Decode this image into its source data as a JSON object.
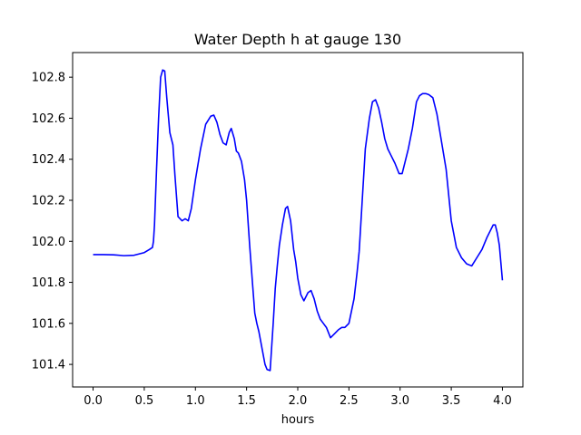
{
  "chart_data": {
    "type": "line",
    "title": "Water Depth h at gauge 130",
    "xlabel": "hours",
    "ylabel": "",
    "xlim": [
      -0.2,
      4.2
    ],
    "ylim": [
      101.29,
      102.92
    ],
    "xticks": [
      0.0,
      0.5,
      1.0,
      1.5,
      2.0,
      2.5,
      3.0,
      3.5,
      4.0
    ],
    "xtick_labels": [
      "0.0",
      "0.5",
      "1.0",
      "1.5",
      "2.0",
      "2.5",
      "3.0",
      "3.5",
      "4.0"
    ],
    "yticks": [
      101.4,
      101.6,
      101.8,
      102.0,
      102.2,
      102.4,
      102.6,
      102.8
    ],
    "ytick_labels": [
      "101.4",
      "101.6",
      "101.8",
      "102.0",
      "102.2",
      "102.4",
      "102.6",
      "102.8"
    ],
    "grid": false,
    "line_color": "#0000ff",
    "series": [
      {
        "name": "",
        "x": [
          0.0,
          0.1,
          0.2,
          0.3,
          0.4,
          0.5,
          0.55,
          0.58,
          0.59,
          0.6,
          0.62,
          0.64,
          0.66,
          0.68,
          0.7,
          0.72,
          0.75,
          0.78,
          0.8,
          0.83,
          0.87,
          0.9,
          0.93,
          0.96,
          1.0,
          1.05,
          1.1,
          1.15,
          1.18,
          1.21,
          1.24,
          1.27,
          1.3,
          1.33,
          1.35,
          1.38,
          1.4,
          1.42,
          1.45,
          1.48,
          1.5,
          1.53,
          1.56,
          1.58,
          1.6,
          1.62,
          1.65,
          1.68,
          1.7,
          1.73,
          1.76,
          1.78,
          1.8,
          1.82,
          1.85,
          1.88,
          1.9,
          1.93,
          1.96,
          1.98,
          2.0,
          2.03,
          2.06,
          2.1,
          2.13,
          2.16,
          2.19,
          2.22,
          2.25,
          2.28,
          2.32,
          2.36,
          2.4,
          2.43,
          2.46,
          2.5,
          2.55,
          2.58,
          2.6,
          2.63,
          2.66,
          2.7,
          2.73,
          2.76,
          2.79,
          2.82,
          2.85,
          2.88,
          2.91,
          2.95,
          2.99,
          3.02,
          3.04,
          3.08,
          3.12,
          3.16,
          3.19,
          3.22,
          3.25,
          3.28,
          3.32,
          3.36,
          3.4,
          3.45,
          3.5,
          3.55,
          3.6,
          3.65,
          3.7,
          3.75,
          3.8,
          3.85,
          3.88,
          3.91,
          3.93,
          3.95,
          3.97,
          4.0
        ],
        "y": [
          101.935,
          101.935,
          101.934,
          101.93,
          101.932,
          101.945,
          101.96,
          101.97,
          102.0,
          102.08,
          102.35,
          102.6,
          102.8,
          102.835,
          102.83,
          102.7,
          102.53,
          102.47,
          102.32,
          102.12,
          102.1,
          102.11,
          102.1,
          102.16,
          102.3,
          102.45,
          102.57,
          102.61,
          102.615,
          102.58,
          102.52,
          102.48,
          102.47,
          102.53,
          102.55,
          102.5,
          102.44,
          102.43,
          102.39,
          102.3,
          102.2,
          101.98,
          101.78,
          101.65,
          101.6,
          101.56,
          101.48,
          101.4,
          101.375,
          101.37,
          101.6,
          101.77,
          101.88,
          101.98,
          102.08,
          102.16,
          102.17,
          102.1,
          101.96,
          101.9,
          101.82,
          101.74,
          101.71,
          101.75,
          101.76,
          101.72,
          101.66,
          101.62,
          101.6,
          101.58,
          101.53,
          101.55,
          101.57,
          101.58,
          101.58,
          101.6,
          101.72,
          101.85,
          101.95,
          102.2,
          102.45,
          102.6,
          102.68,
          102.69,
          102.65,
          102.58,
          102.5,
          102.45,
          102.42,
          102.38,
          102.33,
          102.33,
          102.37,
          102.45,
          102.55,
          102.68,
          102.71,
          102.72,
          102.72,
          102.715,
          102.7,
          102.62,
          102.5,
          102.35,
          102.1,
          101.97,
          101.92,
          101.89,
          101.88,
          101.92,
          101.96,
          102.02,
          102.05,
          102.08,
          102.08,
          102.04,
          101.98,
          101.81
        ]
      }
    ]
  }
}
